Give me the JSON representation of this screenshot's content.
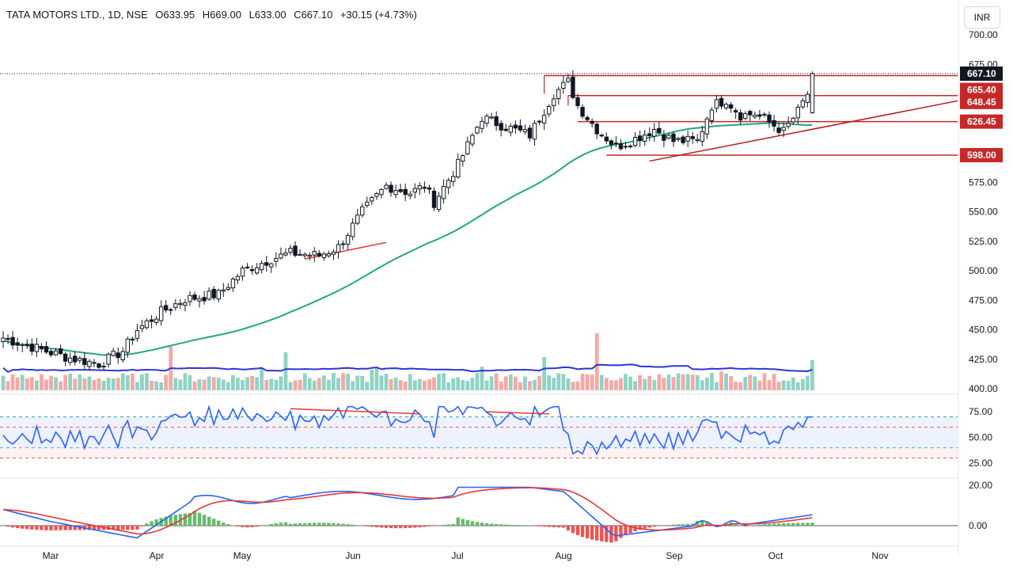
{
  "header": {
    "symbol": "TATA MOTORS LTD., 1D, NSE",
    "open": "O633.95",
    "high": "H669.00",
    "low": "L633.00",
    "close": "C667.10",
    "change": "+30.15 (+4.73%)"
  },
  "currency_button": "INR",
  "colors": {
    "up": "#26a69a",
    "down": "#ef5350",
    "candle": "#131722",
    "ma": "#22a882",
    "vol_ma": "#2f35d6",
    "rsi": "#2962ff",
    "macd": "#2962ff",
    "signal": "#e53935",
    "level": "#c62828"
  },
  "chart_data": {
    "type": "candlestick",
    "title": "TATA MOTORS LTD., 1D, NSE",
    "x_labels": [
      "Mar",
      "Apr",
      "May",
      "Jun",
      "Jul",
      "Aug",
      "Sep",
      "Oct",
      "Nov"
    ],
    "y_ticks": [
      "400.00",
      "425.00",
      "450.00",
      "475.00",
      "500.00",
      "525.00",
      "550.00",
      "575.00",
      "600.00",
      "625.00",
      "650.00",
      "675.00",
      "700.00"
    ],
    "ylim": [
      400,
      710
    ],
    "last_price": "667.10",
    "levels": [
      "665.40",
      "648.45",
      "626.45",
      "598.00"
    ],
    "anchors": [
      [
        0,
        443
      ],
      [
        8,
        433
      ],
      [
        14,
        426
      ],
      [
        20,
        421
      ],
      [
        25,
        432
      ],
      [
        28,
        450
      ],
      [
        33,
        465
      ],
      [
        38,
        476
      ],
      [
        45,
        480
      ],
      [
        50,
        500
      ],
      [
        56,
        510
      ],
      [
        60,
        515
      ],
      [
        66,
        513
      ],
      [
        70,
        520
      ],
      [
        75,
        550
      ],
      [
        80,
        572
      ],
      [
        85,
        566
      ],
      [
        88,
        572
      ],
      [
        90,
        558
      ],
      [
        95,
        590
      ],
      [
        100,
        630
      ],
      [
        105,
        622
      ],
      [
        110,
        615
      ],
      [
        115,
        650
      ],
      [
        118,
        660
      ],
      [
        120,
        640
      ],
      [
        124,
        620
      ],
      [
        128,
        605
      ],
      [
        132,
        612
      ],
      [
        136,
        620
      ],
      [
        140,
        610
      ],
      [
        145,
        610
      ],
      [
        148,
        640
      ],
      [
        151,
        645
      ],
      [
        154,
        632
      ],
      [
        157,
        633
      ],
      [
        160,
        626
      ],
      [
        163,
        618
      ],
      [
        166,
        635
      ],
      [
        168,
        650
      ],
      [
        169,
        667
      ]
    ],
    "n_candles": 170,
    "moving_average": "50-day MA",
    "rsi": {
      "ticks": [
        "75.00",
        "50.00",
        "25.00"
      ],
      "levels": [
        70,
        60,
        40,
        30
      ]
    },
    "macd": {
      "ticks": [
        "20.00",
        "0.00"
      ]
    }
  }
}
